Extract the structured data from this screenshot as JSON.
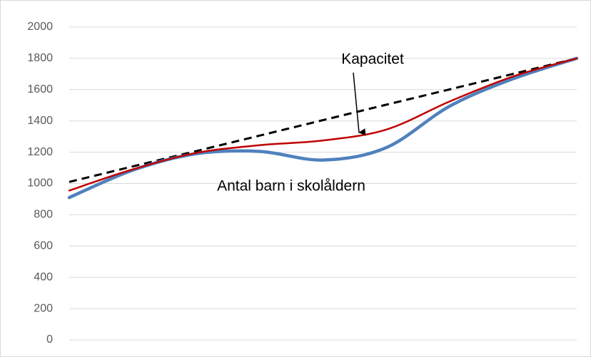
{
  "chart_data": {
    "type": "line",
    "categories": [
      null,
      null,
      null,
      null,
      null,
      null,
      null,
      null,
      null
    ],
    "series": [
      {
        "name": "Antal barn i skolåldern",
        "color": "#4f81bd",
        "values": [
          910,
          1085,
          1190,
          1205,
          1150,
          1230,
          1495,
          1670,
          1800
        ]
      },
      {
        "name": "Kapacitet",
        "color": "#c00000",
        "values": [
          955,
          1090,
          1195,
          1245,
          1275,
          1345,
          1525,
          1685,
          1800
        ]
      },
      {
        "name": null,
        "color": "#000000",
        "dashed": true,
        "values": [
          1010,
          1109,
          1207,
          1306,
          1405,
          1504,
          1602,
          1701,
          1800
        ]
      }
    ],
    "annotations": [
      "Kapacitet",
      "Antal barn i skolåldern"
    ],
    "ylim": [
      0,
      2000
    ],
    "yticks": [
      0,
      200,
      400,
      600,
      800,
      1000,
      1200,
      1400,
      1600,
      1800,
      2000
    ],
    "grid": true
  }
}
